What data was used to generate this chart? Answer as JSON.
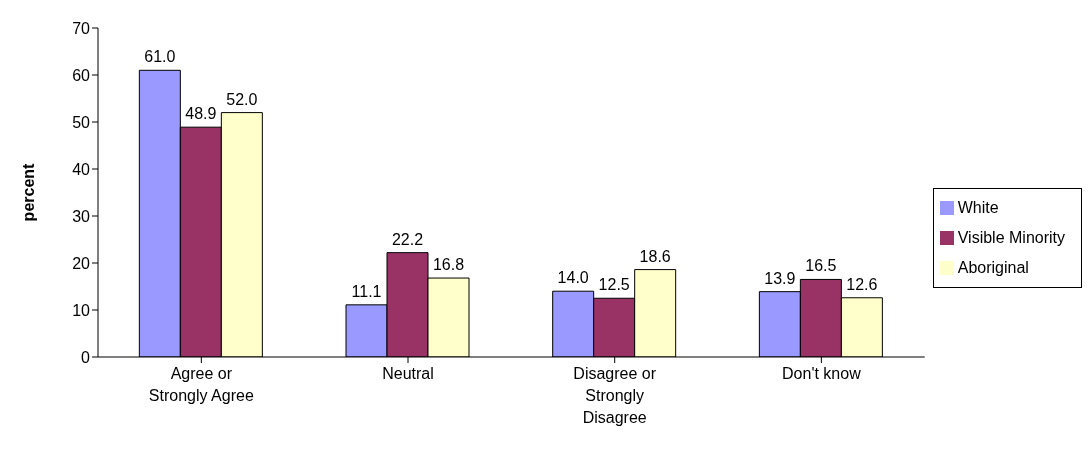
{
  "chart_data": {
    "type": "bar",
    "ylabel": "percent",
    "categories": [
      "Agree or Strongly Agree",
      "Neutral",
      "Disagree or Strongly Disagree",
      "Don't know"
    ],
    "series": [
      {
        "name": "White",
        "color": "#9999ff",
        "values": [
          61.0,
          11.1,
          14.0,
          13.9
        ],
        "value_labels": [
          "61.0",
          "11.1",
          "14.0",
          "13.9"
        ]
      },
      {
        "name": "Visible Minority",
        "color": "#993366",
        "values": [
          48.9,
          22.2,
          12.5,
          16.5
        ],
        "value_labels": [
          "48.9",
          "22.2",
          "12.5",
          "16.5"
        ]
      },
      {
        "name": "Aboriginal",
        "color": "#ffffcc",
        "values": [
          52.0,
          16.8,
          18.6,
          12.6
        ],
        "value_labels": [
          "52.0",
          "16.8",
          "18.6",
          "12.6"
        ]
      }
    ],
    "ylim": [
      0,
      70
    ],
    "yticks": [
      0,
      10,
      20,
      30,
      40,
      50,
      60,
      70
    ],
    "grid": false,
    "legend": "right"
  }
}
